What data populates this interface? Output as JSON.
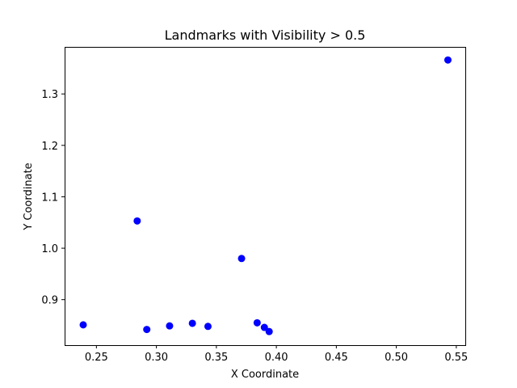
{
  "chart_data": {
    "type": "scatter",
    "title": "Landmarks with Visibility > 0.5",
    "xlabel": "X Coordinate",
    "ylabel": "Y Coordinate",
    "xlim": [
      0.2235,
      0.5575
    ],
    "ylim": [
      0.8115,
      1.3915
    ],
    "xticks": [
      0.25,
      0.3,
      0.35,
      0.4,
      0.45,
      0.5,
      0.55
    ],
    "xtick_labels": [
      "0.25",
      "0.30",
      "0.35",
      "0.40",
      "0.45",
      "0.50",
      "0.55"
    ],
    "yticks": [
      0.9,
      1.0,
      1.1,
      1.2,
      1.3
    ],
    "ytick_labels": [
      "0.9",
      "1.0",
      "1.1",
      "1.2",
      "1.3"
    ],
    "grid": false,
    "legend": "none",
    "marker_color": "#0000ff",
    "series": [
      {
        "points": [
          {
            "x": 0.239,
            "y": 0.851
          },
          {
            "x": 0.284,
            "y": 1.053
          },
          {
            "x": 0.292,
            "y": 0.842
          },
          {
            "x": 0.311,
            "y": 0.849
          },
          {
            "x": 0.33,
            "y": 0.854
          },
          {
            "x": 0.343,
            "y": 0.848
          },
          {
            "x": 0.371,
            "y": 0.98
          },
          {
            "x": 0.384,
            "y": 0.855
          },
          {
            "x": 0.39,
            "y": 0.846
          },
          {
            "x": 0.394,
            "y": 0.838
          },
          {
            "x": 0.543,
            "y": 1.366
          }
        ]
      }
    ]
  }
}
